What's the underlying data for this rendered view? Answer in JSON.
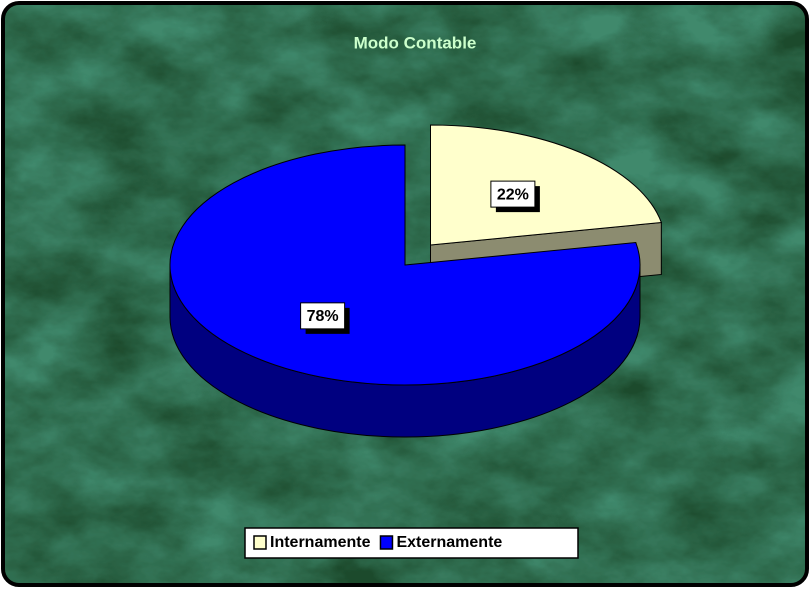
{
  "chart_data": {
    "type": "pie",
    "title": "Modo Contable",
    "categories": [
      "Internamente",
      "Externamente"
    ],
    "values": [
      22,
      78
    ],
    "value_labels": [
      "22%",
      "78%"
    ],
    "colors": [
      "#ffffcc",
      "#0000ff"
    ],
    "legend": "bottom"
  }
}
